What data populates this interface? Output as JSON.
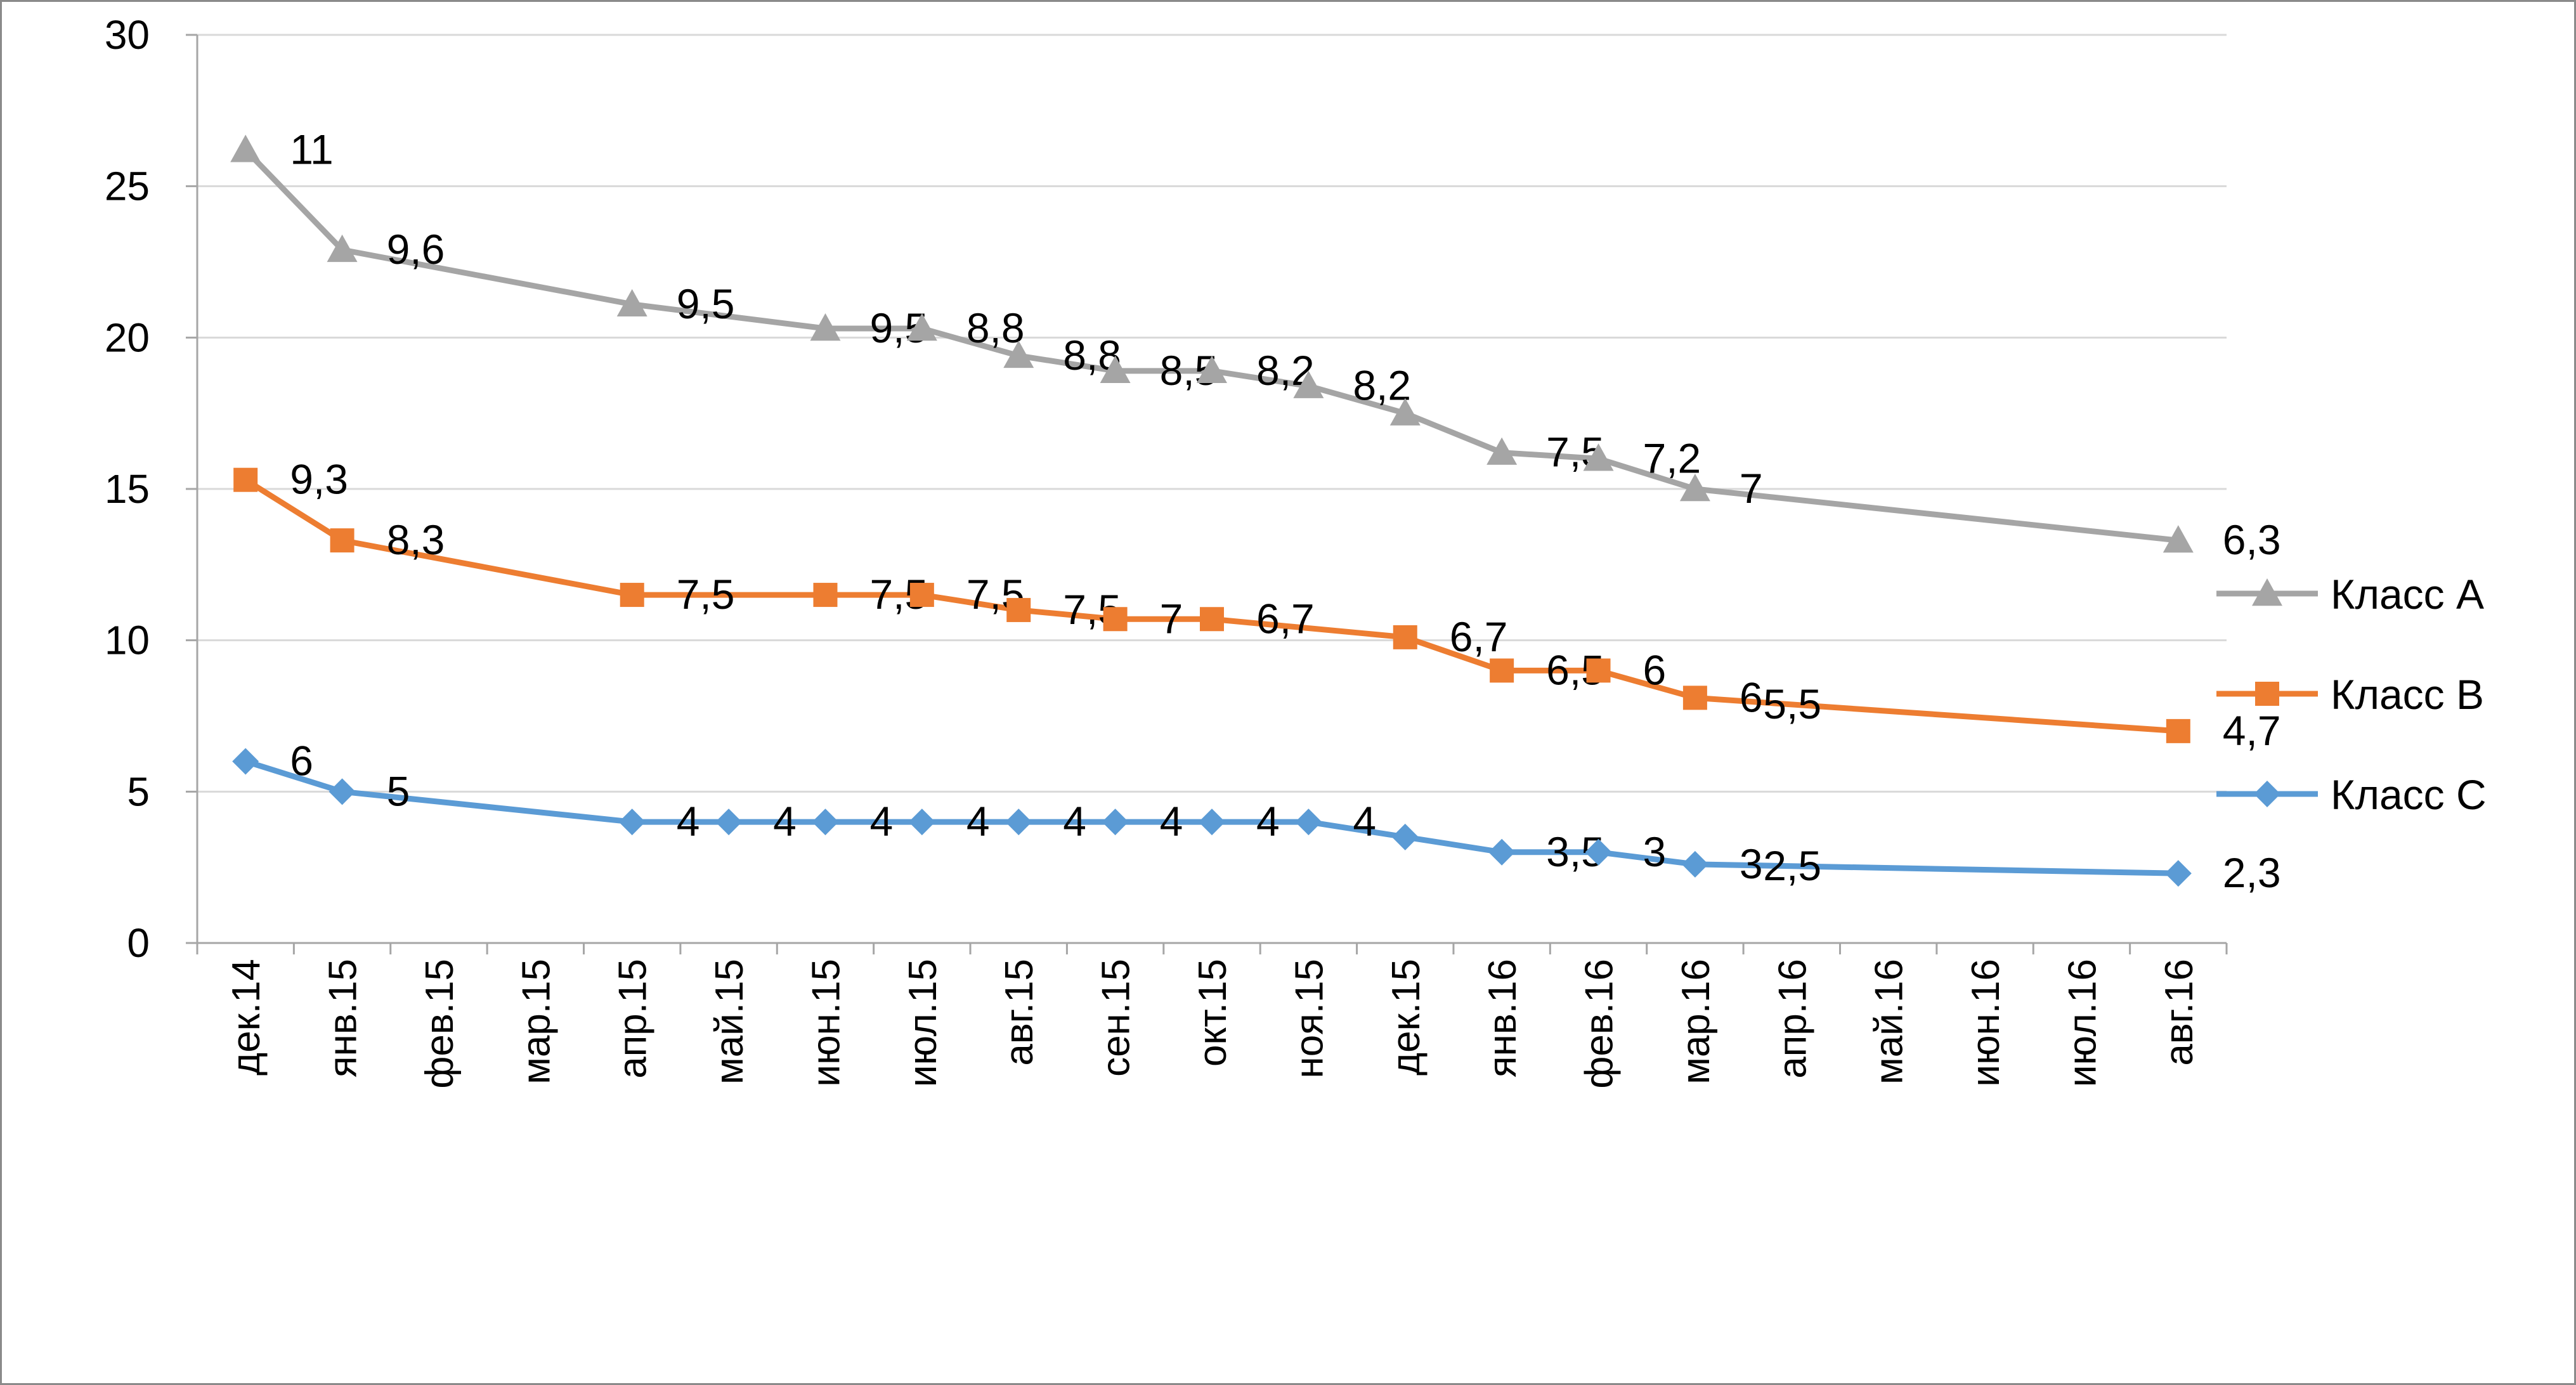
{
  "chart_data": {
    "type": "line",
    "x": [
      "дек.14",
      "янв.15",
      "фев.15",
      "мар.15",
      "апр.15",
      "май.15",
      "июн.15",
      "июл.15",
      "авг.15",
      "сен.15",
      "окт.15",
      "ноя.15",
      "дек.15",
      "янв.16",
      "фев.16",
      "мар.16",
      "апр.16",
      "май.16",
      "июн.16",
      "июл.16",
      "авг.16"
    ],
    "yticks": [
      "0",
      "5",
      "10",
      "15",
      "20",
      "25",
      "30"
    ],
    "ylim": [
      0,
      30
    ],
    "grid": true,
    "legend_position": "right",
    "series": [
      {
        "name": "Класс A",
        "color": "#a5a5a5",
        "marker": "triangle",
        "points": [
          {
            "x": "дек.14",
            "y": 26.2,
            "label": "11"
          },
          {
            "x": "янв.15",
            "y": 22.9,
            "label": "9,6"
          },
          {
            "x": "апр.15",
            "y": 21.1,
            "label": "9,5"
          },
          {
            "x": "июн.15",
            "y": 20.3,
            "label": "9,5"
          },
          {
            "x": "июл.15",
            "y": 20.3,
            "label": "8,8"
          },
          {
            "x": "авг.15",
            "y": 19.4,
            "label": "8,8"
          },
          {
            "x": "сен.15",
            "y": 18.9,
            "label": "8,5"
          },
          {
            "x": "окт.15",
            "y": 18.9,
            "label": "8,2"
          },
          {
            "x": "ноя.15",
            "y": 18.4,
            "label": "8,2"
          },
          {
            "x": "дек.15",
            "y": 17.5,
            "label": ""
          },
          {
            "x": "янв.16",
            "y": 16.2,
            "label": "7,5"
          },
          {
            "x": "фев.16",
            "y": 16.0,
            "label": "7,2"
          },
          {
            "x": "мар.16",
            "y": 15.0,
            "label": "7"
          },
          {
            "x": "авг.16",
            "y": 13.3,
            "label": "6,3"
          }
        ],
        "extra_labels": [
          {
            "x": "фев.16",
            "label": "7"
          },
          {
            "x": "мар.16",
            "label": "7"
          }
        ]
      },
      {
        "name": "Класс B",
        "color": "#ed7d31",
        "marker": "square",
        "points": [
          {
            "x": "дек.14",
            "y": 15.3,
            "label": "9,3"
          },
          {
            "x": "янв.15",
            "y": 13.3,
            "label": "8,3"
          },
          {
            "x": "апр.15",
            "y": 11.5,
            "label": "7,5"
          },
          {
            "x": "июн.15",
            "y": 11.5,
            "label": "7,5"
          },
          {
            "x": "июл.15",
            "y": 11.5,
            "label": "7,5"
          },
          {
            "x": "авг.15",
            "y": 11.0,
            "label": "7,5"
          },
          {
            "x": "сен.15",
            "y": 10.7,
            "label": "7"
          },
          {
            "x": "окт.15",
            "y": 10.7,
            "label": "6,7"
          },
          {
            "x": "дек.15",
            "y": 10.1,
            "label": "6,7"
          },
          {
            "x": "янв.16",
            "y": 9.0,
            "label": "6,5"
          },
          {
            "x": "фев.16",
            "y": 9.0,
            "label": "6"
          },
          {
            "x": "мар.16",
            "y": 8.1,
            "label": "6"
          },
          {
            "x": "авг.16",
            "y": 7.0,
            "label": "4,7"
          }
        ],
        "extra_labels": [
          {
            "x": "апр.16",
            "label": "5,5"
          }
        ]
      },
      {
        "name": "Класс C",
        "color": "#5b9bd5",
        "marker": "diamond",
        "points": [
          {
            "x": "дек.14",
            "y": 6.0,
            "label": "6"
          },
          {
            "x": "янв.15",
            "y": 5.0,
            "label": "5"
          },
          {
            "x": "апр.15",
            "y": 4.0,
            "label": "4"
          },
          {
            "x": "май.15",
            "y": 4.0,
            "label": "4"
          },
          {
            "x": "июн.15",
            "y": 4.0,
            "label": "4"
          },
          {
            "x": "июл.15",
            "y": 4.0,
            "label": "4"
          },
          {
            "x": "авг.15",
            "y": 4.0,
            "label": "4"
          },
          {
            "x": "сен.15",
            "y": 4.0,
            "label": "4"
          },
          {
            "x": "окт.15",
            "y": 4.0,
            "label": "4"
          },
          {
            "x": "ноя.15",
            "y": 4.0,
            "label": "4"
          },
          {
            "x": "дек.15",
            "y": 3.5,
            "label": ""
          },
          {
            "x": "янв.16",
            "y": 3.0,
            "label": "3,5"
          },
          {
            "x": "фев.16",
            "y": 3.0,
            "label": "3"
          },
          {
            "x": "мар.16",
            "y": 2.6,
            "label": "3"
          },
          {
            "x": "авг.16",
            "y": 2.3,
            "label": "2,3"
          }
        ],
        "extra_labels": [
          {
            "x": "апр.16",
            "label": "2,5"
          }
        ]
      }
    ]
  }
}
